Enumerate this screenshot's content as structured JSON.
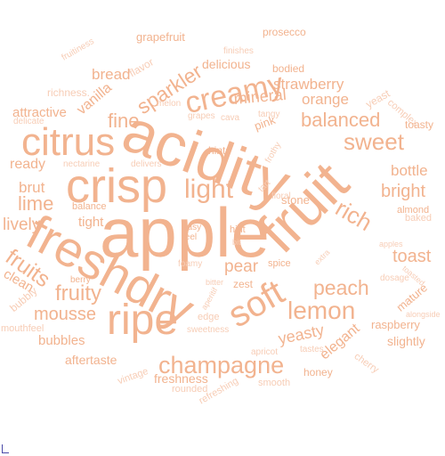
{
  "colors": {
    "word_strong": "#f2b38f",
    "word_light": "#f7cdb6",
    "background": "#ffffff"
  },
  "words": [
    {
      "key": "apple",
      "text": "apple"
    },
    {
      "key": "acidity",
      "text": "acidity"
    },
    {
      "key": "fruit",
      "text": "fruit"
    },
    {
      "key": "freshdry",
      "text": "freshdry"
    },
    {
      "key": "crisp",
      "text": "crisp"
    },
    {
      "key": "citrus",
      "text": "citrus"
    },
    {
      "key": "ripe",
      "text": "ripe"
    },
    {
      "key": "soft",
      "text": "soft"
    },
    {
      "key": "creamy",
      "text": "creamy"
    },
    {
      "key": "light",
      "text": "light"
    },
    {
      "key": "champagne",
      "text": "champagne"
    },
    {
      "key": "lemon",
      "text": "lemon"
    },
    {
      "key": "sweet",
      "text": "sweet"
    },
    {
      "key": "rich",
      "text": "rich"
    },
    {
      "key": "balanced",
      "text": "balanced"
    },
    {
      "key": "fruits",
      "text": "fruits"
    },
    {
      "key": "fruity",
      "text": "fruity"
    },
    {
      "key": "sparkler",
      "text": "sparkler"
    },
    {
      "key": "peach",
      "text": "peach"
    },
    {
      "key": "bright",
      "text": "bright"
    },
    {
      "key": "toast",
      "text": "toast"
    },
    {
      "key": "yeasty",
      "text": "yeasty"
    },
    {
      "key": "mousse",
      "text": "mousse"
    },
    {
      "key": "lime",
      "text": "lime"
    },
    {
      "key": "fine",
      "text": "fine"
    },
    {
      "key": "mineral",
      "text": "mineral"
    },
    {
      "key": "strawberry",
      "text": "strawberry"
    },
    {
      "key": "elegant",
      "text": "elegant"
    },
    {
      "key": "lively",
      "text": "lively"
    },
    {
      "key": "brut",
      "text": "brut"
    },
    {
      "key": "ready",
      "text": "ready"
    },
    {
      "key": "orange",
      "text": "orange"
    },
    {
      "key": "bubbles",
      "text": "bubbles"
    },
    {
      "key": "pear",
      "text": "pear"
    },
    {
      "key": "vanilla",
      "text": "vanilla"
    },
    {
      "key": "bread",
      "text": "bread"
    },
    {
      "key": "delicious",
      "text": "delicious"
    },
    {
      "key": "attractive",
      "text": "attractive"
    },
    {
      "key": "freshness",
      "text": "freshness"
    },
    {
      "key": "aftertaste",
      "text": "aftertaste"
    },
    {
      "key": "clean",
      "text": "clean"
    },
    {
      "key": "tight",
      "text": "tight"
    },
    {
      "key": "bottle",
      "text": "bottle"
    },
    {
      "key": "raspberry",
      "text": "raspberry"
    },
    {
      "key": "slightly",
      "text": "slightly"
    },
    {
      "key": "honey",
      "text": "honey"
    },
    {
      "key": "stone",
      "text": "stone"
    },
    {
      "key": "mature",
      "text": "mature"
    },
    {
      "key": "grapefruit",
      "text": "grapefruit"
    },
    {
      "key": "prosecco",
      "text": "prosecco"
    },
    {
      "key": "bodied",
      "text": "bodied"
    },
    {
      "key": "flavor",
      "text": "flavor"
    },
    {
      "key": "pink",
      "text": "pink"
    },
    {
      "key": "hints",
      "text": "hints"
    },
    {
      "key": "zest",
      "text": "zest"
    },
    {
      "key": "smooth",
      "text": "smooth"
    },
    {
      "key": "refreshing",
      "text": "refreshing"
    },
    {
      "key": "rounded",
      "text": "rounded"
    },
    {
      "key": "vintage",
      "text": "vintage"
    },
    {
      "key": "bubbly",
      "text": "bubbly"
    },
    {
      "key": "mouthfeel",
      "text": "mouthfeel"
    },
    {
      "key": "almond",
      "text": "almond"
    },
    {
      "key": "baked",
      "text": "baked"
    },
    {
      "key": "yeast",
      "text": "yeast"
    },
    {
      "key": "complex",
      "text": "complex"
    },
    {
      "key": "toasty",
      "text": "toasty"
    },
    {
      "key": "richness",
      "text": "richness."
    },
    {
      "key": "fruitiness",
      "text": "fruitiness"
    },
    {
      "key": "melon",
      "text": "melon"
    },
    {
      "key": "tangy",
      "text": "tangy"
    },
    {
      "key": "grapes",
      "text": "grapes"
    },
    {
      "key": "cava",
      "text": "cava"
    },
    {
      "key": "finishes",
      "text": "finishes"
    },
    {
      "key": "delicate",
      "text": "delicate"
    },
    {
      "key": "nectarine",
      "text": "nectarine"
    },
    {
      "key": "delivers",
      "text": "delivers"
    },
    {
      "key": "frothy",
      "text": "frothy"
    },
    {
      "key": "tart",
      "text": "tart"
    },
    {
      "key": "floral",
      "text": "floral"
    },
    {
      "key": "balance",
      "text": "balance"
    },
    {
      "key": "hint",
      "text": "hint"
    },
    {
      "key": "bit",
      "text": "bit"
    },
    {
      "key": "easy",
      "text": "easy"
    },
    {
      "key": "feel",
      "text": "feel"
    },
    {
      "key": "foamy",
      "text": "foamy"
    },
    {
      "key": "berry",
      "text": "berry"
    },
    {
      "key": "bitter",
      "text": "bitter"
    },
    {
      "key": "spice",
      "text": "spice"
    },
    {
      "key": "extra",
      "text": "extra"
    },
    {
      "key": "apples",
      "text": "apples"
    },
    {
      "key": "toasted",
      "text": "toasted"
    },
    {
      "key": "dosage",
      "text": "dosage"
    },
    {
      "key": "alongside",
      "text": "alongside"
    },
    {
      "key": "aperitif",
      "text": "aperitif"
    },
    {
      "key": "edge",
      "text": "edge"
    },
    {
      "key": "sweetness",
      "text": "sweetness"
    },
    {
      "key": "apricot",
      "text": "apricot"
    },
    {
      "key": "tastes",
      "text": "tastes"
    },
    {
      "key": "cherry",
      "text": "cherry"
    }
  ]
}
